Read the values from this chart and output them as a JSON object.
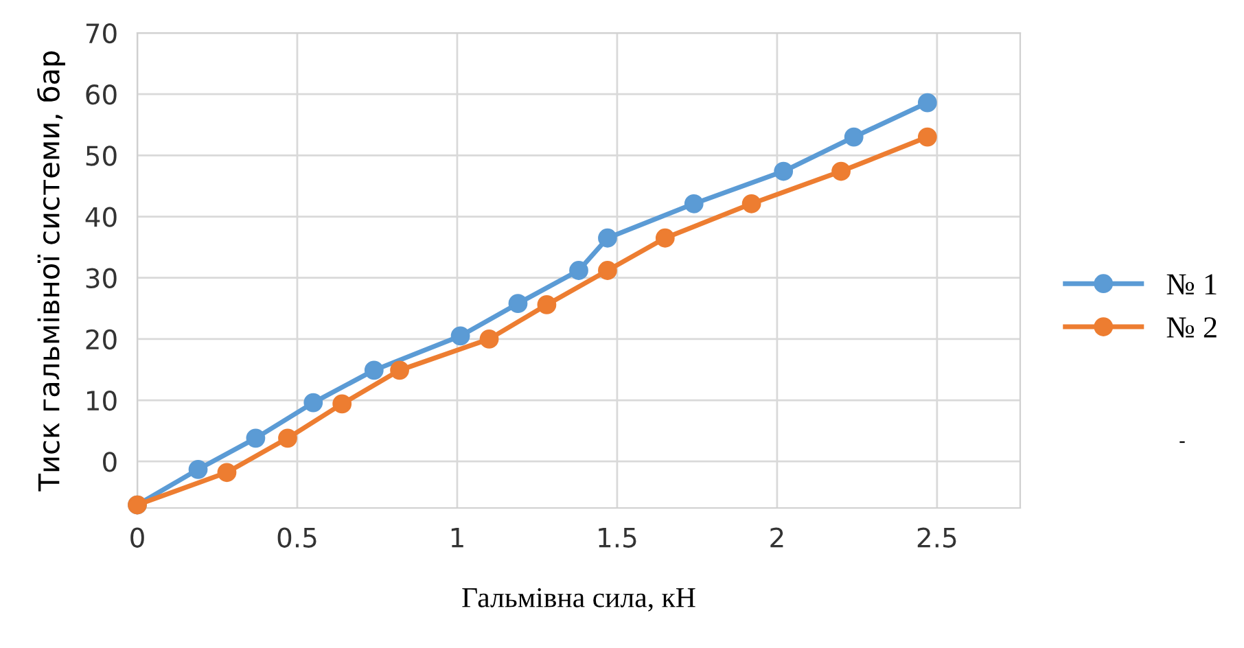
{
  "chart_data": {
    "type": "line",
    "xlabel": "Гальмівна сила, кН",
    "ylabel": "Тиск гальмівної системи, бар",
    "series": [
      {
        "name": "№ 1",
        "color": "#5b9bd5",
        "x": [
          0,
          0.19,
          0.37,
          0.55,
          0.74,
          1.01,
          1.19,
          1.38,
          1.47,
          1.74,
          2.02,
          2.24,
          2.47
        ],
        "values": [
          -7.1,
          -1.3,
          3.8,
          9.6,
          14.9,
          20.5,
          25.8,
          31.2,
          36.5,
          42.1,
          47.4,
          53.0,
          58.6
        ]
      },
      {
        "name": "№ 2",
        "color": "#ed7d31",
        "x": [
          0,
          0.28,
          0.47,
          0.64,
          0.82,
          1.1,
          1.28,
          1.47,
          1.65,
          1.92,
          2.2,
          2.47
        ],
        "values": [
          -7.1,
          -1.8,
          3.8,
          9.4,
          14.9,
          20.0,
          25.6,
          31.2,
          36.5,
          42.1,
          47.4,
          53.0
        ]
      }
    ],
    "xlim": [
      0,
      2.76
    ],
    "xticks": [
      0,
      0.5,
      1,
      1.5,
      2,
      2.5
    ],
    "ylim": [
      -7.6,
      70
    ],
    "yticks": [
      0,
      10,
      20,
      30,
      40,
      50,
      60,
      70
    ],
    "grid": true,
    "legend": "right",
    "marker": "circle",
    "line_style": "solid",
    "annotations": [
      "-"
    ]
  }
}
